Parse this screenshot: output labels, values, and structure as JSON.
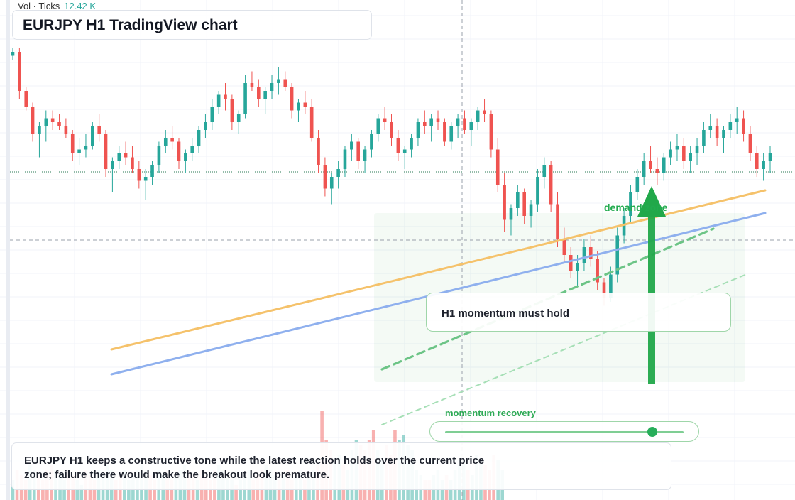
{
  "header": {
    "volume_label": "Vol · Ticks",
    "volume_value": "12.42 K"
  },
  "title": "EURJPY H1 TradingView chart",
  "annotations": {
    "zone_label": "demand zone",
    "callout": "H1 momentum must hold",
    "meter_label": "momentum recovery",
    "meter_level": 0.87,
    "note": "EURJPY H1 keeps a constructive tone while the latest reaction holds over the current price zone; failure there would make the breakout look premature."
  },
  "colors": {
    "up": "#26a69a",
    "down": "#ef5350",
    "trendline_orange": "#f5c26b",
    "trendline_blue": "#8fb0ee",
    "arrow": "#21a84a"
  },
  "chart_data": {
    "type": "candlestick",
    "symbol": "EURJPY",
    "timeframe": "H1",
    "price_axis": "hidden",
    "grid": true,
    "notes": "Price axis is not shown; candle values are relative units (0 = bottom of candle area, 100 = top).",
    "candles": [
      [
        93,
        95,
        92,
        94
      ],
      [
        94,
        95,
        82,
        84
      ],
      [
        84,
        85,
        79,
        80
      ],
      [
        80,
        81,
        71,
        73
      ],
      [
        73,
        76,
        67,
        75
      ],
      [
        75,
        79,
        71,
        77
      ],
      [
        77,
        79,
        74,
        76
      ],
      [
        76,
        78,
        74,
        75
      ],
      [
        75,
        77,
        72,
        73
      ],
      [
        73,
        74,
        66,
        68
      ],
      [
        68,
        72,
        65,
        69
      ],
      [
        69,
        73,
        67,
        70
      ],
      [
        70,
        76,
        69,
        75
      ],
      [
        75,
        78,
        71,
        73
      ],
      [
        73,
        74,
        62,
        64
      ],
      [
        64,
        67,
        58,
        66
      ],
      [
        66,
        70,
        64,
        68
      ],
      [
        68,
        71,
        65,
        67
      ],
      [
        67,
        70,
        63,
        64
      ],
      [
        64,
        66,
        59,
        61
      ],
      [
        61,
        64,
        56,
        62
      ],
      [
        62,
        66,
        60,
        65
      ],
      [
        65,
        71,
        63,
        70
      ],
      [
        70,
        74,
        68,
        72
      ],
      [
        72,
        75,
        69,
        71
      ],
      [
        71,
        72,
        64,
        66
      ],
      [
        66,
        69,
        63,
        68
      ],
      [
        68,
        72,
        66,
        70
      ],
      [
        70,
        75,
        68,
        74
      ],
      [
        74,
        78,
        72,
        76
      ],
      [
        76,
        82,
        74,
        80
      ],
      [
        80,
        84,
        78,
        83
      ],
      [
        83,
        86,
        79,
        82
      ],
      [
        82,
        83,
        74,
        76
      ],
      [
        76,
        79,
        73,
        78
      ],
      [
        78,
        88,
        77,
        86
      ],
      [
        86,
        89,
        84,
        85
      ],
      [
        85,
        87,
        80,
        82
      ],
      [
        82,
        85,
        78,
        84
      ],
      [
        84,
        88,
        82,
        86
      ],
      [
        86,
        90,
        83,
        87
      ],
      [
        87,
        89,
        84,
        85
      ],
      [
        85,
        86,
        77,
        79
      ],
      [
        79,
        82,
        76,
        81
      ],
      [
        81,
        84,
        78,
        80
      ],
      [
        80,
        82,
        71,
        72
      ],
      [
        72,
        74,
        63,
        65
      ],
      [
        65,
        67,
        57,
        59
      ],
      [
        59,
        63,
        55,
        62
      ],
      [
        62,
        66,
        59,
        64
      ],
      [
        64,
        70,
        62,
        69
      ],
      [
        69,
        73,
        66,
        71
      ],
      [
        71,
        72,
        64,
        66
      ],
      [
        66,
        70,
        63,
        69
      ],
      [
        69,
        74,
        67,
        73
      ],
      [
        73,
        78,
        71,
        77
      ],
      [
        77,
        80,
        74,
        76
      ],
      [
        76,
        78,
        70,
        72
      ],
      [
        72,
        74,
        66,
        68
      ],
      [
        68,
        70,
        64,
        69
      ],
      [
        69,
        73,
        67,
        72
      ],
      [
        72,
        77,
        70,
        76
      ],
      [
        76,
        79,
        73,
        75
      ],
      [
        75,
        78,
        71,
        77
      ],
      [
        77,
        79,
        74,
        76
      ],
      [
        76,
        77,
        70,
        71
      ],
      [
        71,
        76,
        69,
        75
      ],
      [
        75,
        78,
        72,
        77
      ],
      [
        77,
        79,
        73,
        74
      ],
      [
        74,
        77,
        70,
        76
      ],
      [
        76,
        80,
        74,
        79
      ],
      [
        79,
        82,
        76,
        78
      ],
      [
        78,
        79,
        67,
        69
      ],
      [
        69,
        72,
        58,
        60
      ],
      [
        60,
        63,
        48,
        51
      ],
      [
        51,
        55,
        47,
        54
      ],
      [
        54,
        60,
        52,
        58
      ],
      [
        58,
        59,
        50,
        52
      ],
      [
        52,
        56,
        49,
        55
      ],
      [
        55,
        64,
        53,
        62
      ],
      [
        62,
        67,
        59,
        65
      ],
      [
        65,
        66,
        53,
        55
      ],
      [
        55,
        58,
        44,
        46
      ],
      [
        46,
        49,
        40,
        42
      ],
      [
        42,
        44,
        36,
        38
      ],
      [
        38,
        42,
        34,
        40
      ],
      [
        40,
        46,
        38,
        44
      ],
      [
        44,
        47,
        39,
        41
      ],
      [
        41,
        43,
        33,
        35
      ],
      [
        35,
        36,
        29,
        31
      ],
      [
        31,
        39,
        30,
        37
      ],
      [
        37,
        49,
        35,
        47
      ],
      [
        47,
        54,
        45,
        52
      ],
      [
        52,
        60,
        50,
        58
      ],
      [
        58,
        64,
        56,
        62
      ],
      [
        62,
        68,
        60,
        66
      ],
      [
        66,
        70,
        63,
        64
      ],
      [
        64,
        67,
        60,
        63
      ],
      [
        63,
        68,
        61,
        67
      ],
      [
        67,
        71,
        65,
        69
      ],
      [
        69,
        73,
        66,
        70
      ],
      [
        70,
        72,
        64,
        66
      ],
      [
        66,
        70,
        63,
        68
      ],
      [
        68,
        72,
        65,
        70
      ],
      [
        70,
        76,
        68,
        74
      ],
      [
        74,
        78,
        72,
        75
      ],
      [
        75,
        77,
        70,
        72
      ],
      [
        72,
        75,
        68,
        74
      ],
      [
        74,
        78,
        72,
        76
      ],
      [
        76,
        80,
        73,
        77
      ],
      [
        77,
        79,
        71,
        73
      ],
      [
        73,
        75,
        66,
        68
      ],
      [
        68,
        70,
        62,
        64
      ],
      [
        64,
        68,
        61,
        66
      ],
      [
        66,
        70,
        63,
        68
      ]
    ],
    "volume": [
      0.2,
      0.3,
      0.25,
      0.2,
      0.35,
      0.3,
      0.25,
      0.2,
      0.3,
      0.35,
      0.3,
      0.25,
      0.2,
      0.3,
      0.25,
      0.2,
      0.15,
      0.3,
      0.25,
      0.2,
      0.3,
      0.25,
      0.35,
      0.3,
      0.2,
      0.25,
      0.3,
      0.2,
      0.25,
      0.3,
      0.35,
      0.3,
      0.25,
      0.2,
      0.3,
      0.25,
      0.3,
      0.2,
      0.25,
      0.3,
      0.35,
      0.3,
      0.25,
      0.2,
      0.3,
      0.25,
      0.2,
      0.3,
      0.35,
      0.3,
      0.25,
      0.2,
      0.15,
      0.2,
      0.25,
      0.3,
      0.2,
      0.25,
      0.3,
      0.35,
      0.3,
      0.25,
      0.2,
      0.25,
      0.3,
      0.2,
      0.25,
      0.3,
      0.2,
      0.25,
      0.3,
      0.35,
      0.9,
      0.6,
      0.5,
      0.4,
      0.45,
      0.35,
      0.3,
      0.5,
      0.6,
      0.55,
      0.5,
      0.6,
      0.7,
      0.5,
      0.4,
      0.55,
      0.45,
      0.7,
      0.6,
      0.65,
      0.55,
      0.5,
      0.3,
      0.25,
      0.2,
      0.2,
      0.25,
      0.3,
      0.2,
      0.25,
      0.2,
      0.3,
      0.35,
      0.4,
      0.3,
      0.25,
      0.45,
      0.4,
      0.35,
      0.3,
      0.45,
      0.4,
      0.3
    ]
  }
}
